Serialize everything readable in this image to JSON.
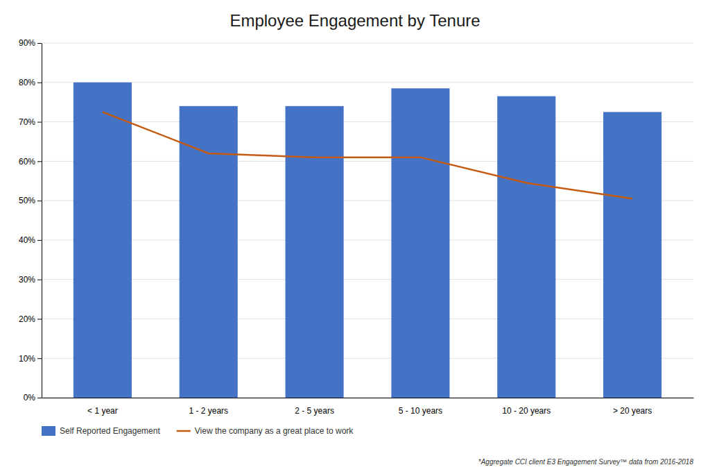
{
  "chart_data": {
    "type": "bar",
    "title": "Employee Engagement by Tenure",
    "categories": [
      "< 1 year",
      "1 - 2 years",
      "2 - 5 years",
      "5 - 10 years",
      "10 - 20 years",
      "> 20 years"
    ],
    "series": [
      {
        "name": "Self Reported Engagement",
        "type": "bar",
        "color": "#4472C4",
        "values": [
          0.8,
          0.74,
          0.74,
          0.785,
          0.765,
          0.725
        ]
      },
      {
        "name": "View the company as a great place to work",
        "type": "line",
        "color": "#C55A11",
        "values": [
          0.725,
          0.62,
          0.61,
          0.61,
          0.545,
          0.505
        ]
      }
    ],
    "ylim": [
      0,
      0.9
    ],
    "yticks": [
      {
        "value": 0.0,
        "label": "0%"
      },
      {
        "value": 0.1,
        "label": "10%"
      },
      {
        "value": 0.2,
        "label": "20%"
      },
      {
        "value": 0.3,
        "label": "30%"
      },
      {
        "value": 0.4,
        "label": "40%"
      },
      {
        "value": 0.5,
        "label": "50%"
      },
      {
        "value": 0.6,
        "label": "60%"
      },
      {
        "value": 0.7,
        "label": "70%"
      },
      {
        "value": 0.8,
        "label": "80%"
      },
      {
        "value": 0.9,
        "label": "90%"
      }
    ],
    "grid": true,
    "legend": "lower left",
    "footnote": "*Aggregate CCI client E3 Engagement Survey™ data from 2016-2018"
  }
}
